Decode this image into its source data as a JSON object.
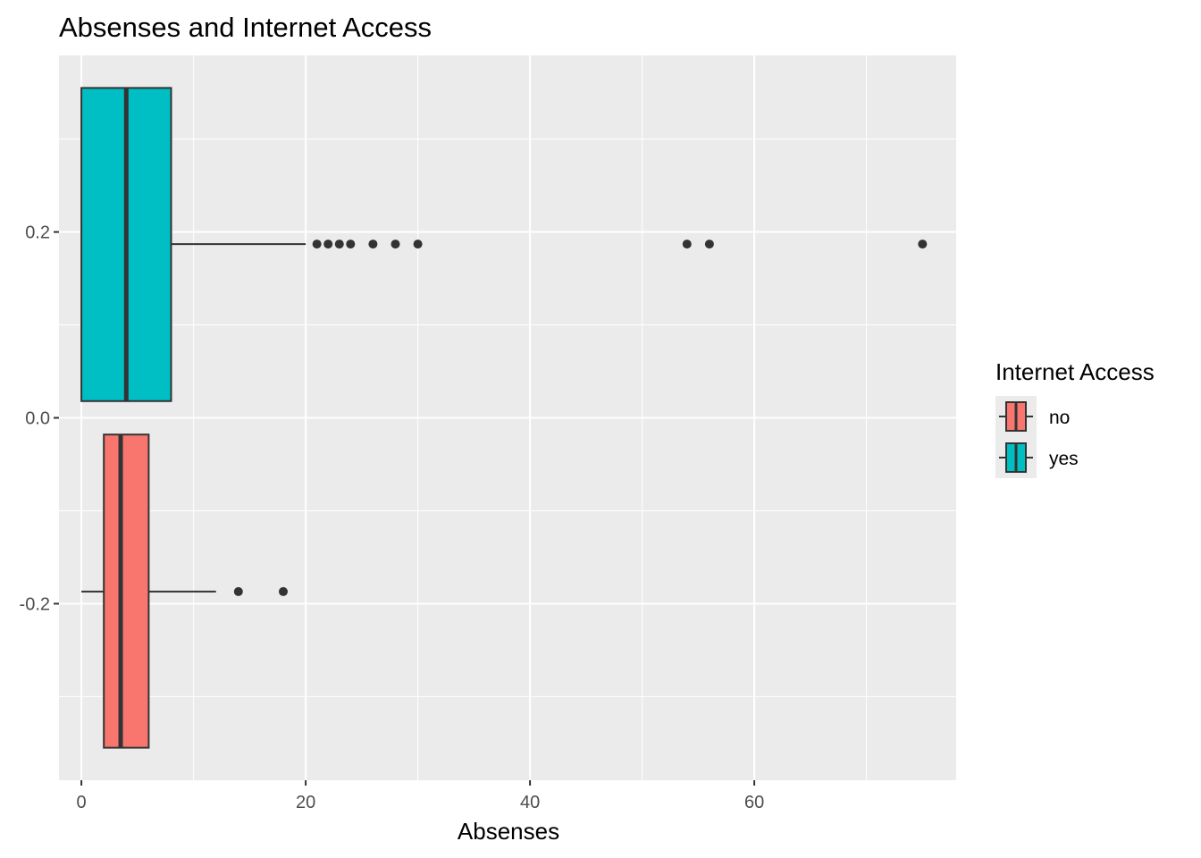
{
  "chart_data": {
    "type": "boxplot",
    "title": "Absenses and Internet Access",
    "xlabel": "Absenses",
    "ylabel": "",
    "xlim": [
      -2,
      78
    ],
    "ylim": [
      -0.39,
      0.39
    ],
    "x_ticks": [
      0,
      20,
      40,
      60
    ],
    "x_tick_labels": [
      "0",
      "20",
      "40",
      "60"
    ],
    "y_ticks": [
      -0.2,
      0.0,
      0.2
    ],
    "y_tick_labels": [
      "-0.2",
      "0.0",
      "0.2"
    ],
    "grid": true,
    "background": "#ebebeb",
    "legend": {
      "title": "Internet Access",
      "position": "right",
      "entries": [
        {
          "label": "no",
          "color": "#F8766D"
        },
        {
          "label": "yes",
          "color": "#00BFC4"
        }
      ]
    },
    "series": [
      {
        "name": "no",
        "color": "#F8766D",
        "y_range": [
          -0.355,
          -0.018
        ],
        "y_center": -0.187,
        "whisker_low": 0,
        "q1": 2,
        "median": 3.5,
        "q3": 6,
        "whisker_high": 12,
        "outliers": [
          14,
          18
        ]
      },
      {
        "name": "yes",
        "color": "#00BFC4",
        "y_range": [
          0.018,
          0.355
        ],
        "y_center": 0.187,
        "whisker_low": 0,
        "q1": 0,
        "median": 4,
        "q3": 8,
        "whisker_high": 20,
        "outliers": [
          21,
          22,
          23,
          24,
          26,
          28,
          30,
          54,
          56,
          75
        ]
      }
    ]
  }
}
